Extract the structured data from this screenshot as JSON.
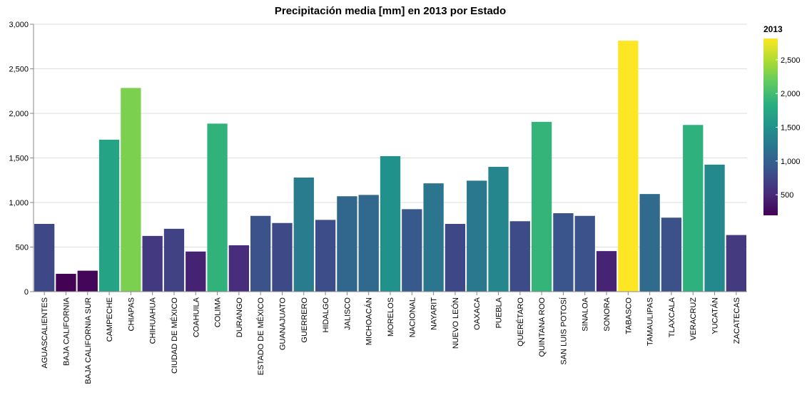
{
  "chart_data": {
    "type": "bar",
    "title": "Precipitación media [mm] en 2013 por Estado",
    "xlabel": "",
    "ylabel": "",
    "ylim": [
      0,
      3000
    ],
    "yticks": [
      0,
      500,
      1000,
      1500,
      2000,
      2500,
      3000
    ],
    "ytick_labels": [
      "0",
      "500",
      "1,000",
      "1,500",
      "2,000",
      "2,500",
      "3,000"
    ],
    "grid": true,
    "categories": [
      "AGUASCALIENTES",
      "BAJA CALIFORNIA",
      "BAJA CALIFORNIA SUR",
      "CAMPECHE",
      "CHIAPAS",
      "CHIHUAHUA",
      "CIUDAD DE MÉXICO",
      "COAHUILA",
      "COLIMA",
      "DURANGO",
      "ESTADO DE MÉXICO",
      "GUANAJUATO",
      "GUERRERO",
      "HIDALGO",
      "JALISCO",
      "MICHOACÁN",
      "MORELOS",
      "NACIONAL",
      "NAYARIT",
      "NUEVO LEÓN",
      "OAXACA",
      "PUEBLA",
      "QUERÉTARO",
      "QUINTANA ROO",
      "SAN LUIS POTOSÍ",
      "SINALOA",
      "SONORA",
      "TABASCO",
      "TAMAULIPAS",
      "TLAXCALA",
      "VERACRUZ",
      "YUCATÁN",
      "ZACATECAS"
    ],
    "values": [
      760,
      200,
      235,
      1705,
      2285,
      625,
      705,
      450,
      1885,
      520,
      850,
      770,
      1280,
      805,
      1070,
      1085,
      1520,
      925,
      1215,
      760,
      1245,
      1400,
      790,
      1905,
      880,
      850,
      455,
      2815,
      1095,
      830,
      1870,
      1425,
      635
    ],
    "legend": {
      "title": "2013",
      "placement": "right",
      "domain": [
        195,
        2815
      ],
      "ticks": [
        500,
        1000,
        1500,
        2000,
        2500
      ],
      "tick_labels": [
        "500",
        "1,000",
        "1,500",
        "2,000",
        "2,500"
      ],
      "colormap": "viridis"
    }
  }
}
